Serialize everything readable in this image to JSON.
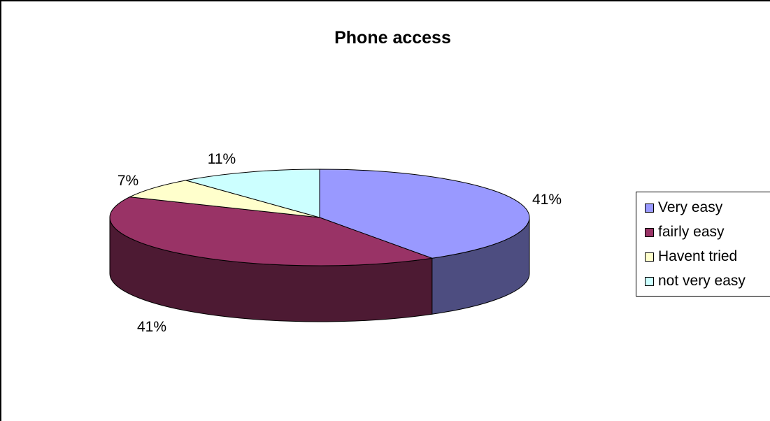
{
  "chart_data": {
    "type": "pie",
    "title": "Phone access",
    "categories": [
      "Very easy",
      "fairly easy",
      "Havent tried",
      "not very easy"
    ],
    "values": [
      41,
      41,
      7,
      11
    ],
    "labels": [
      "41%",
      "41%",
      "7%",
      "11%"
    ],
    "colors": [
      "#9999ff",
      "#993366",
      "#ffffcc",
      "#ccffff"
    ],
    "legend_position": "right",
    "style": "3d"
  }
}
